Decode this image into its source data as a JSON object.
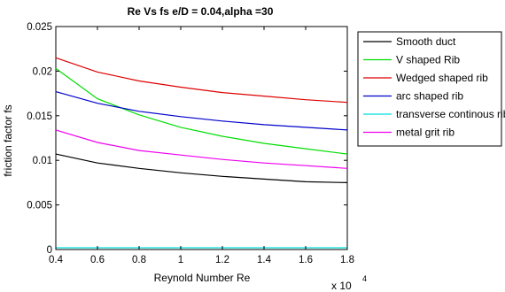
{
  "chart_data": {
    "type": "line",
    "title": "Re Vs fs e/D = 0.04,alpha =30",
    "xlabel": "Reynold Number Re",
    "ylabel": "friction factor fs",
    "x_multiplier": "x 10",
    "x_multiplier_exp": "4",
    "xlim": [
      0.4,
      1.8
    ],
    "ylim": [
      0,
      0.025
    ],
    "xticks": [
      0.4,
      0.6,
      0.8,
      1,
      1.2,
      1.4,
      1.6,
      1.8
    ],
    "xtick_labels": [
      "0.4",
      "0.6",
      "0.8",
      "1",
      "1.2",
      "1.4",
      "1.6",
      "1.8"
    ],
    "yticks": [
      0,
      0.005,
      0.01,
      0.015,
      0.02,
      0.025
    ],
    "ytick_labels": [
      "0",
      "0.005",
      "0.01",
      "0.015",
      "0.02",
      "0.025"
    ],
    "grid": false,
    "legend_position": "outside-right",
    "x": [
      0.4,
      0.6,
      0.8,
      1.0,
      1.2,
      1.4,
      1.6,
      1.8
    ],
    "series": [
      {
        "name": "Smooth duct",
        "color": "#000000",
        "values": [
          0.0107,
          0.0097,
          0.0091,
          0.0086,
          0.0082,
          0.0079,
          0.0076,
          0.0075
        ]
      },
      {
        "name": "V shaped Rib",
        "color": "#00dd00",
        "values": [
          0.0203,
          0.0169,
          0.0151,
          0.0137,
          0.0127,
          0.0119,
          0.0113,
          0.0107
        ]
      },
      {
        "name": "Wedged shaped rib",
        "color": "#dd0000",
        "values": [
          0.0215,
          0.0199,
          0.0189,
          0.0182,
          0.0176,
          0.0172,
          0.0168,
          0.0165
        ]
      },
      {
        "name": "arc shaped rib",
        "color": "#0000cc",
        "values": [
          0.0177,
          0.0164,
          0.0155,
          0.0149,
          0.0144,
          0.014,
          0.0137,
          0.0134
        ]
      },
      {
        "name": "transverse continous rib",
        "color": "#00dddd",
        "values": [
          0.0002,
          0.0002,
          0.0002,
          0.0002,
          0.0002,
          0.0002,
          0.0002,
          0.0002
        ]
      },
      {
        "name": "metal grit rib",
        "color": "#ee00ee",
        "values": [
          0.0134,
          0.012,
          0.0111,
          0.0106,
          0.0101,
          0.0097,
          0.0094,
          0.0091
        ]
      }
    ]
  }
}
